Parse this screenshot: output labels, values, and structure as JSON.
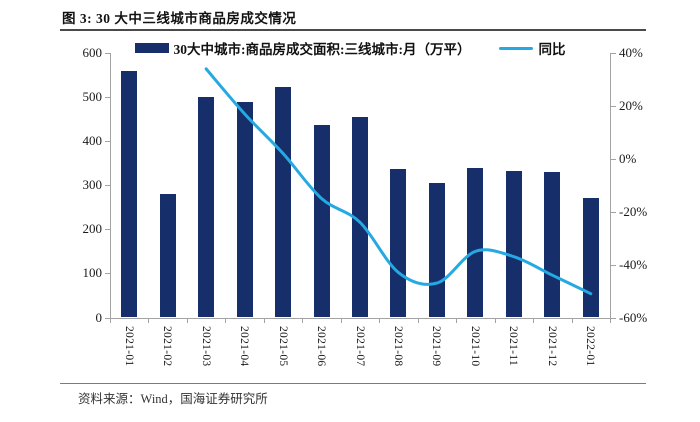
{
  "figure": {
    "title": "图 3:  30 大中三线城市商品房成交情况",
    "source_label": "资料来源：",
    "source_text": "Wind，国海证券研究所"
  },
  "colors": {
    "bar": "#162f6b",
    "line": "#25a9e2",
    "axis": "#a3a3a3"
  },
  "chart_data": {
    "type": "bar",
    "title": "图 3: 30 大中三线城市商品房成交情况",
    "categories": [
      "2021-01",
      "2021-02",
      "2021-03",
      "2021-04",
      "2021-05",
      "2021-06",
      "2021-07",
      "2021-08",
      "2021-09",
      "2021-10",
      "2021-11",
      "2021-12",
      "2022-01"
    ],
    "series": [
      {
        "name": "30大中城市:商品房成交面积:三线城市:月（万平）",
        "type": "bar",
        "axis": "left",
        "color": "#162f6b",
        "values": [
          560,
          281,
          500,
          488,
          524,
          437,
          454,
          336,
          304,
          338,
          333,
          330,
          272
        ]
      },
      {
        "name": "同比",
        "type": "line",
        "axis": "right",
        "color": "#25a9e2",
        "values": [
          null,
          null,
          34,
          17,
          2,
          -15,
          -24,
          -43,
          -47,
          -35,
          -37,
          -44,
          -51
        ]
      }
    ],
    "left_axis": {
      "min": 0,
      "max": 600,
      "step": 100,
      "ticks": [
        0,
        100,
        200,
        300,
        400,
        500,
        600
      ],
      "suffix": ""
    },
    "right_axis": {
      "min": -60,
      "max": 40,
      "step": 20,
      "ticks": [
        -60,
        -40,
        -20,
        0,
        20,
        40
      ],
      "suffix": "%"
    },
    "legend_position": "top",
    "grid": false
  }
}
